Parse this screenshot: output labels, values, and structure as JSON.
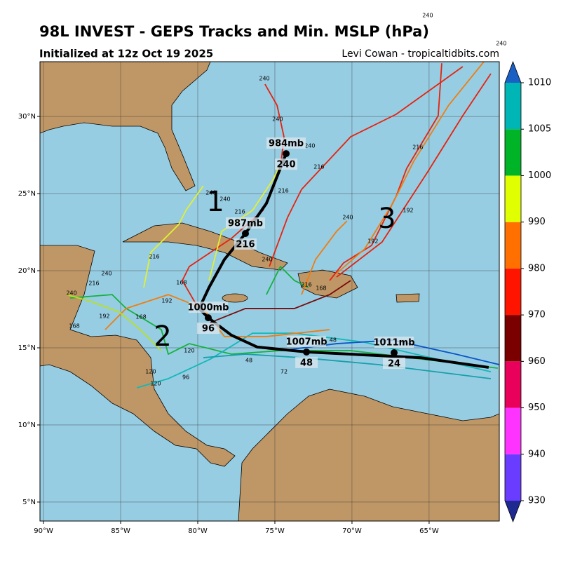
{
  "header": {
    "title": "98L INVEST - GEPS Tracks and Min. MSLP (hPa)",
    "subtitle": "Initialized at 12z Oct 19 2025",
    "credit": "Levi Cowan - tropicaltidbits.com"
  },
  "map": {
    "xlim": [
      -90.23,
      -60.45
    ],
    "ylim": [
      3.77,
      33.55
    ],
    "xticks": [
      {
        "value": -90,
        "label": "90°W"
      },
      {
        "value": -85,
        "label": "85°W"
      },
      {
        "value": -80,
        "label": "80°W"
      },
      {
        "value": -75,
        "label": "75°W"
      },
      {
        "value": -70,
        "label": "70°W"
      },
      {
        "value": -65,
        "label": "65°W"
      }
    ],
    "yticks": [
      {
        "value": 5,
        "label": "5°N"
      },
      {
        "value": 10,
        "label": "10°N"
      },
      {
        "value": 15,
        "label": "15°N"
      },
      {
        "value": 20,
        "label": "20°N"
      },
      {
        "value": 25,
        "label": "25°N"
      },
      {
        "value": 30,
        "label": "30°N"
      }
    ],
    "ocean_color": "#97cde3",
    "land_color": "#bf9766",
    "grid": true,
    "tracks": [
      {
        "color": "#e8210c",
        "lon": [
          -79.95,
          -81.0,
          -80.55,
          -77.82,
          -75.77,
          -74.64,
          -74.41,
          -74.86,
          -75.64
        ],
        "lat": [
          17.55,
          19.36,
          20.27,
          22.09,
          23.91,
          26.64,
          28.68,
          30.73,
          32.09
        ]
      },
      {
        "color": "#e8210c",
        "lon": [
          -75.36,
          -74.18,
          -73.27,
          -70.09,
          -67.14,
          -62.82
        ],
        "lat": [
          20.27,
          23.45,
          25.27,
          28.68,
          30.14,
          33.23
        ]
      },
      {
        "color": "#e8210c",
        "lon": [
          -71.45,
          -70.55,
          -68.73,
          -67.14,
          -66.45,
          -64.41,
          -64.18
        ],
        "lat": [
          19.36,
          20.5,
          21.64,
          24.82,
          26.64,
          30.05,
          33.45
        ]
      },
      {
        "color": "#e8210c",
        "lon": [
          -71.0,
          -68.05,
          -65.09,
          -62.82,
          -61.0
        ],
        "lat": [
          19.59,
          21.86,
          26.41,
          30.05,
          32.77
        ]
      },
      {
        "color": "#f07d10",
        "lon": [
          -71.0,
          -69.18,
          -67.36,
          -66.0,
          -63.73,
          -61.45
        ],
        "lat": [
          19.82,
          21.41,
          24.36,
          27.09,
          30.73,
          33.55
        ]
      },
      {
        "color": "#e2f030",
        "lon": [
          -83.5,
          -83.05,
          -81.23,
          -80.77,
          -79.64
        ],
        "lat": [
          18.91,
          21.18,
          23.0,
          23.91,
          25.5
        ]
      },
      {
        "color": "#e2f030",
        "lon": [
          -79.27,
          -78.45,
          -76.45,
          -75.09,
          -74.55
        ],
        "lat": [
          19.36,
          22.55,
          23.91,
          25.95,
          27.09
        ]
      },
      {
        "color": "#14b23c",
        "lon": [
          -88.27,
          -85.55,
          -84.64,
          -82.36,
          -81.91,
          -80.55,
          -77.82,
          -74.64,
          -70.09,
          -60.55
        ],
        "lat": [
          18.23,
          18.45,
          17.55,
          16.18,
          14.59,
          15.27,
          14.59,
          14.82,
          14.82,
          13.68
        ]
      },
      {
        "color": "#12b8b8",
        "lon": [
          -83.95,
          -81.91,
          -79.18,
          -76.45,
          -73.73,
          -69.18,
          -61.0
        ],
        "lat": [
          12.41,
          13.0,
          14.27,
          15.95,
          15.95,
          15.36,
          13.45
        ]
      },
      {
        "color": "#f07d10",
        "lon": [
          -86.0,
          -84.64,
          -81.91,
          -79.64,
          -78.27,
          -75.55,
          -71.45
        ],
        "lat": [
          16.18,
          17.55,
          18.45,
          17.55,
          15.73,
          15.73,
          16.18
        ]
      },
      {
        "color": "#7a0a0a",
        "lon": [
          -79.18,
          -76.91,
          -73.73,
          -71.45,
          -70.09
        ],
        "lat": [
          16.64,
          17.55,
          17.55,
          18.45,
          19.36
        ]
      },
      {
        "color": "#0a55c8",
        "lon": [
          -74.64,
          -71.0,
          -67.36,
          -63.27,
          -60.45
        ],
        "lat": [
          14.82,
          15.27,
          15.5,
          14.59,
          13.91
        ]
      },
      {
        "color": "#16a0a8",
        "lon": [
          -79.64,
          -76.91,
          -73.27,
          -68.27,
          -61.0
        ],
        "lat": [
          14.36,
          14.59,
          14.36,
          13.91,
          13.0
        ]
      },
      {
        "color": "#14b23c",
        "lon": [
          -75.55,
          -74.64,
          -73.73,
          -72.82
        ],
        "lat": [
          18.45,
          20.27,
          19.36,
          18.91
        ]
      },
      {
        "color": "#f07d10",
        "lon": [
          -73.27,
          -72.36,
          -71.0,
          -70.32
        ],
        "lat": [
          18.45,
          20.73,
          22.55,
          23.23
        ]
      },
      {
        "color": "#b8e020",
        "lon": [
          -88.5,
          -86.91,
          -85.09,
          -83.73,
          -82.36
        ],
        "lat": [
          18.45,
          18.0,
          17.32,
          16.18,
          14.82
        ]
      }
    ],
    "hour_labels": [
      {
        "text": "240",
        "lon": -75.68,
        "lat": 32.45
      },
      {
        "text": "240",
        "lon": -74.82,
        "lat": 29.82
      },
      {
        "text": "240",
        "lon": -72.73,
        "lat": 28.09
      },
      {
        "text": "216",
        "lon": -72.14,
        "lat": 26.73
      },
      {
        "text": "216",
        "lon": -65.73,
        "lat": 28.0
      },
      {
        "text": "216",
        "lon": -74.45,
        "lat": 25.18
      },
      {
        "text": "240",
        "lon": -70.27,
        "lat": 23.45
      },
      {
        "text": "192",
        "lon": -66.36,
        "lat": 23.91
      },
      {
        "text": "192",
        "lon": -68.64,
        "lat": 21.91
      },
      {
        "text": "240",
        "lon": -79.14,
        "lat": 25.05
      },
      {
        "text": "240",
        "lon": -78.23,
        "lat": 24.64
      },
      {
        "text": "216",
        "lon": -77.27,
        "lat": 23.82
      },
      {
        "text": "216",
        "lon": -82.82,
        "lat": 20.91
      },
      {
        "text": "240",
        "lon": -85.91,
        "lat": 19.82
      },
      {
        "text": "216",
        "lon": -86.73,
        "lat": 19.18
      },
      {
        "text": "168",
        "lon": -81.05,
        "lat": 19.23
      },
      {
        "text": "240",
        "lon": -75.5,
        "lat": 20.73
      },
      {
        "text": "216",
        "lon": -72.95,
        "lat": 19.09
      },
      {
        "text": "168",
        "lon": -72.0,
        "lat": 18.86
      },
      {
        "text": "192",
        "lon": -82.0,
        "lat": 18.05
      },
      {
        "text": "240",
        "lon": -88.18,
        "lat": 18.55
      },
      {
        "text": "192",
        "lon": -86.05,
        "lat": 17.05
      },
      {
        "text": "168",
        "lon": -83.68,
        "lat": 17.0
      },
      {
        "text": "168",
        "lon": -88.0,
        "lat": 16.41
      },
      {
        "text": "120",
        "lon": -80.55,
        "lat": 14.82
      },
      {
        "text": "120",
        "lon": -83.05,
        "lat": 13.45
      },
      {
        "text": "120",
        "lon": -82.73,
        "lat": 12.68
      },
      {
        "text": "96",
        "lon": -80.77,
        "lat": 13.09
      },
      {
        "text": "72",
        "lon": -74.41,
        "lat": 13.45
      },
      {
        "text": "48",
        "lon": -76.68,
        "lat": 14.18
      },
      {
        "text": "48",
        "lon": -71.23,
        "lat": 15.5
      },
      {
        "text": "240",
        "lon": -65.09,
        "lat": 36.55
      },
      {
        "text": "240",
        "lon": -60.32,
        "lat": 34.73
      }
    ],
    "clusters": [
      {
        "text": "1",
        "lon": -78.86,
        "lat": 24.36
      },
      {
        "text": "2",
        "lon": -82.27,
        "lat": 15.64
      },
      {
        "text": "3",
        "lon": -67.73,
        "lat": 23.27
      }
    ],
    "mean_track": {
      "color": "#000000",
      "lon": [
        -61.14,
        -65.55,
        -72.95,
        -76.14,
        -77.82,
        -79.32,
        -79.91,
        -79.27,
        -78.27,
        -76.91,
        -75.55,
        -74.27
      ],
      "lat": [
        13.73,
        14.36,
        14.73,
        15.05,
        15.82,
        16.95,
        17.55,
        18.91,
        20.73,
        22.41,
        24.36,
        27.59
      ]
    },
    "mean_points": [
      {
        "lon": -74.27,
        "lat": 27.59,
        "mslp": "984mb",
        "hour": "240"
      },
      {
        "lon": -76.91,
        "lat": 22.41,
        "mslp": "987mb",
        "hour": "216"
      },
      {
        "lon": -79.32,
        "lat": 16.95,
        "mslp": "1000mb",
        "hour": "96"
      },
      {
        "lon": -72.95,
        "lat": 14.73,
        "mslp": "1007mb",
        "hour": "48"
      },
      {
        "lon": -67.27,
        "lat": 14.68,
        "mslp": "1011mb",
        "hour": "24"
      }
    ]
  },
  "colorbar": {
    "levels": [
      930,
      940,
      950,
      960,
      970,
      980,
      990,
      1000,
      1005,
      1010
    ],
    "colors": [
      "#6a3cff",
      "#ff33ff",
      "#e8005a",
      "#7a0000",
      "#ff1400",
      "#ff7000",
      "#e0ff00",
      "#00b428",
      "#00b5b5"
    ],
    "under_color": "#1f2a90",
    "over_color": "#1a60c4"
  }
}
